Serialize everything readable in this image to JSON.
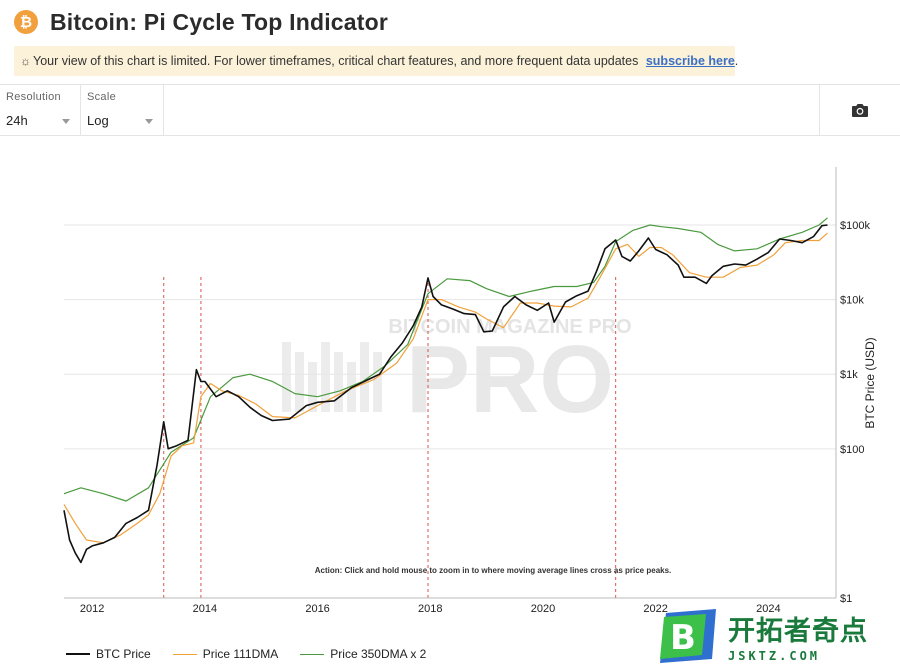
{
  "header": {
    "logo_symbol": "₿",
    "title": "Bitcoin: Pi Cycle Top Indicator"
  },
  "notice": {
    "icon": "sun-icon",
    "text": "Your view of this chart is limited. For lower timeframes, critical chart features, and more frequent data updates ",
    "link_text": "subscribe here",
    "tail": "."
  },
  "controls": {
    "resolution": {
      "label": "Resolution",
      "value": "24h"
    },
    "scale": {
      "label": "Scale",
      "value": "Log"
    },
    "camera_icon": "camera-icon"
  },
  "chart_data": {
    "type": "line",
    "scale": "log",
    "ylabel": "BTC Price (USD)",
    "yticks": [
      {
        "value": 1,
        "label": "$1"
      },
      {
        "value": 100,
        "label": "$100"
      },
      {
        "value": 1000,
        "label": "$1k"
      },
      {
        "value": 10000,
        "label": "$10k"
      },
      {
        "value": 100000,
        "label": "$100k"
      }
    ],
    "ylim": [
      1,
      600000
    ],
    "xlim": [
      2011.5,
      2025.2
    ],
    "xticks": [
      {
        "value": 2012,
        "label": "2012"
      },
      {
        "value": 2014,
        "label": "2014"
      },
      {
        "value": 2016,
        "label": "2016"
      },
      {
        "value": 2018,
        "label": "2018"
      },
      {
        "value": 2020,
        "label": "2020"
      },
      {
        "value": 2022,
        "label": "2022"
      },
      {
        "value": 2024,
        "label": "2024"
      }
    ],
    "annotation": "Action: Click and hold mouse to zoom in to where moving average lines cross as price peaks.",
    "watermark": "BITCOIN MAGAZINE PRO",
    "cross_events": [
      2013.27,
      2013.93,
      2017.96,
      2021.29
    ],
    "series": [
      {
        "name": "BTC Price",
        "color": "#111111",
        "x": [
          2011.5,
          2011.6,
          2011.7,
          2011.8,
          2011.9,
          2012.0,
          2012.2,
          2012.4,
          2012.6,
          2012.8,
          2013.0,
          2013.15,
          2013.27,
          2013.35,
          2013.5,
          2013.7,
          2013.85,
          2013.93,
          2014.0,
          2014.2,
          2014.4,
          2014.6,
          2014.8,
          2015.0,
          2015.2,
          2015.5,
          2015.8,
          2016.0,
          2016.3,
          2016.6,
          2016.9,
          2017.1,
          2017.3,
          2017.5,
          2017.7,
          2017.85,
          2017.96,
          2018.05,
          2018.2,
          2018.4,
          2018.6,
          2018.8,
          2018.95,
          2019.1,
          2019.3,
          2019.5,
          2019.7,
          2019.9,
          2020.1,
          2020.2,
          2020.4,
          2020.6,
          2020.8,
          2020.95,
          2021.1,
          2021.29,
          2021.4,
          2021.55,
          2021.7,
          2021.87,
          2022.0,
          2022.2,
          2022.4,
          2022.5,
          2022.7,
          2022.9,
          2023.0,
          2023.2,
          2023.4,
          2023.6,
          2023.8,
          2024.0,
          2024.2,
          2024.4,
          2024.6,
          2024.8,
          2024.95,
          2025.05
        ],
        "y": [
          15,
          6,
          4,
          3,
          4.5,
          5,
          5.5,
          6.5,
          10,
          12,
          15,
          60,
          230,
          100,
          110,
          130,
          1150,
          800,
          800,
          500,
          600,
          500,
          360,
          280,
          240,
          250,
          380,
          420,
          440,
          660,
          850,
          1000,
          1700,
          2600,
          4500,
          8000,
          19500,
          11000,
          8500,
          7500,
          6500,
          6300,
          3700,
          3800,
          8000,
          11000,
          8500,
          7200,
          9000,
          5000,
          9300,
          11300,
          13000,
          24000,
          48000,
          63000,
          38000,
          33000,
          45000,
          67000,
          47000,
          40000,
          29000,
          20000,
          20000,
          16500,
          21000,
          28000,
          30000,
          29000,
          35000,
          43000,
          65000,
          62000,
          58000,
          70000,
          98000,
          100000
        ]
      },
      {
        "name": "Price 111DMA",
        "color": "#f0a13a",
        "x": [
          2011.5,
          2011.7,
          2011.9,
          2012.2,
          2012.5,
          2012.8,
          2013.0,
          2013.2,
          2013.4,
          2013.6,
          2013.8,
          2013.93,
          2014.1,
          2014.3,
          2014.6,
          2014.9,
          2015.2,
          2015.6,
          2016.0,
          2016.5,
          2017.0,
          2017.4,
          2017.7,
          2017.96,
          2018.2,
          2018.5,
          2018.8,
          2019.0,
          2019.3,
          2019.6,
          2019.9,
          2020.2,
          2020.5,
          2020.8,
          2021.0,
          2021.29,
          2021.5,
          2021.7,
          2021.9,
          2022.1,
          2022.3,
          2022.6,
          2022.9,
          2023.2,
          2023.5,
          2023.8,
          2024.1,
          2024.3,
          2024.6,
          2024.9,
          2025.05
        ],
        "y": [
          18,
          10,
          6,
          5.5,
          7,
          10,
          13,
          25,
          80,
          110,
          120,
          500,
          750,
          600,
          520,
          400,
          270,
          260,
          380,
          600,
          850,
          1400,
          3000,
          10000,
          10000,
          8000,
          6800,
          5500,
          4200,
          9000,
          9000,
          8200,
          8000,
          10500,
          19000,
          48000,
          55000,
          38000,
          50000,
          50000,
          40000,
          23000,
          20000,
          20000,
          27000,
          29000,
          40000,
          58000,
          62000,
          62000,
          78000
        ]
      },
      {
        "name": "Price 350DMA x 2",
        "color": "#4a9a3e",
        "x": [
          2011.5,
          2011.8,
          2012.2,
          2012.6,
          2013.0,
          2013.4,
          2013.8,
          2014.1,
          2014.5,
          2014.8,
          2015.2,
          2015.6,
          2016.0,
          2016.4,
          2016.8,
          2017.2,
          2017.6,
          2017.96,
          2018.3,
          2018.7,
          2019.0,
          2019.4,
          2019.8,
          2020.2,
          2020.6,
          2020.9,
          2021.1,
          2021.29,
          2021.6,
          2021.9,
          2022.1,
          2022.4,
          2022.8,
          2023.1,
          2023.4,
          2023.8,
          2024.2,
          2024.6,
          2024.9,
          2025.05
        ],
        "y": [
          25,
          30,
          25,
          20,
          30,
          90,
          140,
          500,
          900,
          1000,
          800,
          550,
          500,
          600,
          800,
          1300,
          2500,
          12000,
          19000,
          18000,
          14000,
          11000,
          13000,
          15000,
          15000,
          17000,
          28000,
          60000,
          85000,
          100000,
          95000,
          90000,
          80000,
          55000,
          45000,
          48000,
          65000,
          80000,
          100000,
          125000
        ]
      }
    ]
  },
  "footer_watermark": {
    "badge_letter": "B",
    "text": "开拓者奇点",
    "url": "JSKTZ.COM"
  }
}
